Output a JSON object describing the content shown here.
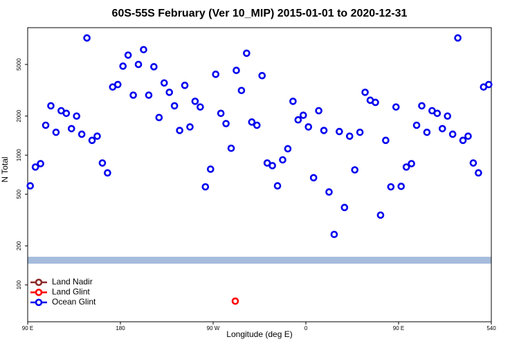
{
  "chart_data": {
    "type": "scatter",
    "title": "60S-55S February (Ver 10_MIP)   2015-01-01 to 2020-12-31",
    "x_label": "Longitude (deg E)",
    "y_label": "N Total",
    "xlim": [
      90,
      540
    ],
    "ylim": [
      52,
      9600
    ],
    "log_y": true,
    "xticks": [
      {
        "value": 90,
        "label": "90 E"
      },
      180,
      {
        "value": 270,
        "label": "90 W"
      },
      {
        "value": 360,
        "label": "0"
      },
      {
        "value": 450,
        "label": "90 E"
      },
      540
    ],
    "yticks": [
      100,
      200,
      500,
      1000,
      2000,
      5000
    ],
    "band": {
      "value": 155,
      "color": "#a6bcdc"
    },
    "legend": "bottom-left",
    "series": [
      {
        "name": "Land Nadir",
        "color": "#8b2a2a",
        "x": [],
        "values": []
      },
      {
        "name": "Land Glint",
        "color": "#ff0000",
        "x": [
          291.5
        ],
        "values": [
          75
        ]
      },
      {
        "name": "Ocean Glint",
        "color": "#0000ee",
        "x": [
          92.5,
          97.5,
          102.5,
          107.5,
          112.5,
          117.5,
          122.5,
          127.5,
          132.5,
          137.5,
          142.5,
          147.5,
          152.5,
          157.5,
          162.5,
          167.5,
          172.5,
          177.5,
          182.5,
          187.5,
          192.5,
          197.5,
          202.5,
          207.5,
          212.5,
          217.5,
          222.5,
          227.5,
          232.5,
          237.5,
          242.5,
          247.5,
          252.5,
          257.5,
          262.5,
          267.5,
          272.5,
          277.5,
          282.5,
          287.5,
          292.5,
          297.5,
          302.5,
          307.5,
          312.5,
          317.5,
          322.5,
          327.5,
          332.5,
          337.5,
          342.5,
          347.5,
          352.5,
          357.5,
          362.5,
          367.5,
          372.5,
          377.5,
          382.5,
          387.5,
          392.5,
          397.5,
          402.5,
          407.5,
          412.5,
          417.5,
          422.5,
          427.5,
          432.5,
          437.5,
          442.5,
          447.5,
          452.5,
          457.5,
          462.5,
          467.5,
          472.5,
          477.5,
          482.5,
          487.5,
          492.5,
          497.5,
          502.5,
          507.5,
          512.5,
          517.5,
          522.5,
          527.5,
          532.5,
          537.5
        ],
        "values": [
          580,
          810,
          860,
          1700,
          2400,
          1500,
          2200,
          2100,
          1600,
          2000,
          1450,
          8000,
          1300,
          1400,
          870,
          730,
          3350,
          3500,
          4850,
          5900,
          2900,
          5000,
          6500,
          2900,
          4800,
          1950,
          3600,
          3050,
          2400,
          1550,
          3450,
          1650,
          2600,
          2350,
          570,
          780,
          4200,
          2100,
          1750,
          1130,
          4500,
          3150,
          6100,
          1800,
          1700,
          4100,
          870,
          830,
          580,
          920,
          1120,
          2600,
          1870,
          2030,
          1650,
          670,
          2200,
          1550,
          520,
          245,
          1520,
          395,
          1400,
          770,
          1500,
          3050,
          2650,
          2550,
          345,
          1300,
          570,
          2350,
          575,
          810,
          860,
          1700,
          2400,
          1500,
          2200,
          2100,
          1600,
          2000,
          1450,
          8000,
          1300,
          1400,
          870,
          730,
          3350,
          3500
        ]
      }
    ]
  }
}
